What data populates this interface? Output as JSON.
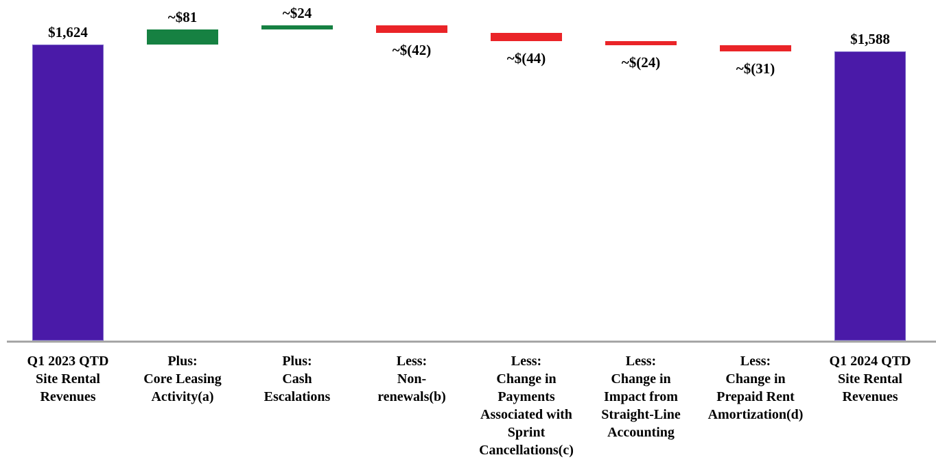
{
  "chart_data": {
    "type": "bar",
    "subtype": "waterfall",
    "title": "",
    "xlabel": "",
    "ylabel": "",
    "ylim": [
      0,
      1750
    ],
    "grid": false,
    "legend": "none",
    "colors": {
      "total": "#4A1AA8",
      "total_border": "#7d6ac9",
      "increase": "#168142",
      "decrease": "#EA2428",
      "axis": "#A6A6A6",
      "text": "#000000"
    },
    "bars": [
      {
        "kind": "total",
        "value": 1624,
        "value_label": "$1,624",
        "category_lines": [
          "Q1 2023 QTD",
          "Site Rental",
          "Revenues"
        ]
      },
      {
        "kind": "increase",
        "value": 81,
        "value_label": "~$81",
        "category_lines": [
          "Plus:",
          "Core Leasing",
          "Activity(a)"
        ]
      },
      {
        "kind": "increase",
        "value": 24,
        "value_label": "~$24",
        "category_lines": [
          "Plus:",
          "Cash",
          "Escalations"
        ]
      },
      {
        "kind": "decrease",
        "value": -42,
        "value_label": "~$(42)",
        "category_lines": [
          "Less:",
          "Non-",
          "renewals(b)"
        ]
      },
      {
        "kind": "decrease",
        "value": -44,
        "value_label": "~$(44)",
        "category_lines": [
          "Less:",
          "Change in",
          "Payments",
          "Associated with",
          "Sprint",
          "Cancellations(c)"
        ]
      },
      {
        "kind": "decrease",
        "value": -24,
        "value_label": "~$(24)",
        "category_lines": [
          "Less:",
          "Change in",
          "Impact from",
          "Straight-Line",
          "Accounting"
        ]
      },
      {
        "kind": "decrease",
        "value": -31,
        "value_label": "~$(31)",
        "category_lines": [
          "Less:",
          "Change in",
          "Prepaid Rent",
          "Amortization(d)"
        ]
      },
      {
        "kind": "total",
        "value": 1588,
        "value_label": "$1,588",
        "category_lines": [
          "Q1 2024 QTD",
          "Site Rental",
          "Revenues"
        ]
      }
    ]
  }
}
